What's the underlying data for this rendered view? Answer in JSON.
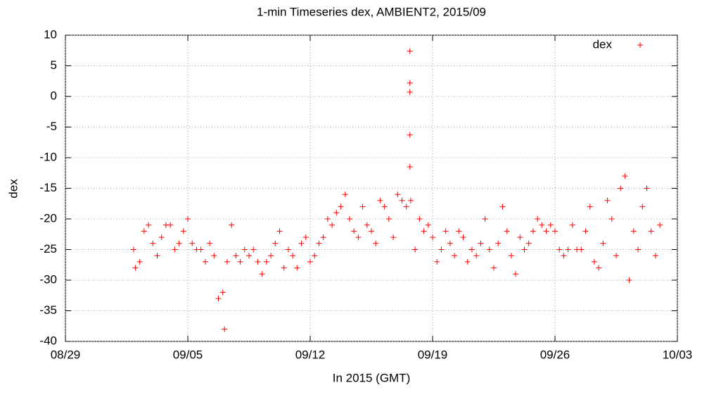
{
  "chart_data": {
    "type": "scatter",
    "title": "1-min Timeseries dex, AMBIENT2, 2015/09",
    "x_label": "In 2015 (GMT)",
    "y_label": "dex",
    "xlim": [
      0,
      35
    ],
    "xticks": [
      {
        "value": 0,
        "label": "08/29"
      },
      {
        "value": 7,
        "label": "09/05"
      },
      {
        "value": 14,
        "label": "09/12"
      },
      {
        "value": 21,
        "label": "09/19"
      },
      {
        "value": 28,
        "label": "09/26"
      },
      {
        "value": 35,
        "label": "10/03"
      }
    ],
    "ylim": [
      -40,
      10
    ],
    "yticks": [
      -40,
      -35,
      -30,
      -25,
      -20,
      -15,
      -10,
      -5,
      0,
      5,
      10
    ],
    "grid": true,
    "legend": "top-right",
    "series": [
      {
        "name": "dex",
        "color": "#ff0000",
        "x": [
          3.9,
          4.0,
          4.25,
          4.5,
          4.75,
          5.0,
          5.25,
          5.5,
          5.75,
          6.0,
          6.25,
          6.5,
          6.75,
          7.0,
          7.25,
          7.5,
          7.75,
          8.0,
          8.25,
          8.5,
          8.75,
          9.0,
          9.1,
          9.25,
          9.5,
          9.75,
          10.0,
          10.25,
          10.5,
          10.75,
          11.0,
          11.25,
          11.5,
          11.75,
          12.0,
          12.25,
          12.5,
          12.75,
          13.0,
          13.25,
          13.5,
          13.75,
          14.0,
          14.25,
          14.5,
          14.75,
          15.0,
          15.25,
          15.5,
          15.75,
          16.0,
          16.25,
          16.5,
          16.75,
          17.0,
          17.25,
          17.5,
          17.75,
          18.0,
          18.25,
          18.5,
          18.75,
          19.0,
          19.25,
          19.5,
          19.7,
          19.7,
          19.7,
          19.7,
          19.7,
          19.75,
          20.0,
          20.25,
          20.5,
          20.75,
          21.0,
          21.25,
          21.5,
          21.75,
          22.0,
          22.25,
          22.5,
          22.75,
          23.0,
          23.25,
          23.5,
          23.75,
          24.0,
          24.25,
          24.5,
          24.75,
          25.0,
          25.25,
          25.5,
          25.75,
          26.0,
          26.25,
          26.5,
          26.75,
          27.0,
          27.25,
          27.5,
          27.75,
          28.0,
          28.25,
          28.5,
          28.75,
          29.0,
          29.25,
          29.5,
          29.75,
          30.0,
          30.25,
          30.5,
          30.75,
          31.0,
          31.25,
          31.5,
          31.75,
          32.0,
          32.25,
          32.5,
          32.75,
          33.0,
          33.25,
          33.5,
          33.75,
          34.0
        ],
        "values": [
          -25,
          -28,
          -27,
          -22,
          -21,
          -24,
          -26,
          -23,
          -21,
          -21,
          -25,
          -24,
          -22,
          -20,
          -24,
          -25,
          -25,
          -27,
          -24,
          -26,
          -33,
          -32,
          -38,
          -27,
          -21,
          -26,
          -27,
          -25,
          -26,
          -25,
          -27,
          -29,
          -27,
          -26,
          -24,
          -22,
          -28,
          -25,
          -26,
          -28,
          -24,
          -23,
          -27,
          -26,
          -24,
          -23,
          -20,
          -21,
          -19,
          -18,
          -16,
          -20,
          -22,
          -23,
          -18,
          -21,
          -22,
          -24,
          -17,
          -18,
          -20,
          -23,
          -16,
          -17,
          -18,
          7.4,
          2.2,
          0.7,
          -6.3,
          -11.5,
          -17,
          -25,
          -20,
          -22,
          -21,
          -23,
          -27,
          -25,
          -22,
          -24,
          -26,
          -22,
          -23,
          -27,
          -25,
          -26,
          -24,
          -20,
          -25,
          -28,
          -24,
          -18,
          -22,
          -26,
          -29,
          -23,
          -25,
          -24,
          -22,
          -20,
          -21,
          -22,
          -21,
          -22,
          -25,
          -26,
          -25,
          -21,
          -25,
          -25,
          -22,
          -18,
          -27,
          -28,
          -24,
          -17,
          -20,
          -26,
          -15,
          -13,
          -30,
          -22,
          -25,
          -18,
          -15,
          -22,
          -26,
          -21
        ]
      }
    ]
  }
}
